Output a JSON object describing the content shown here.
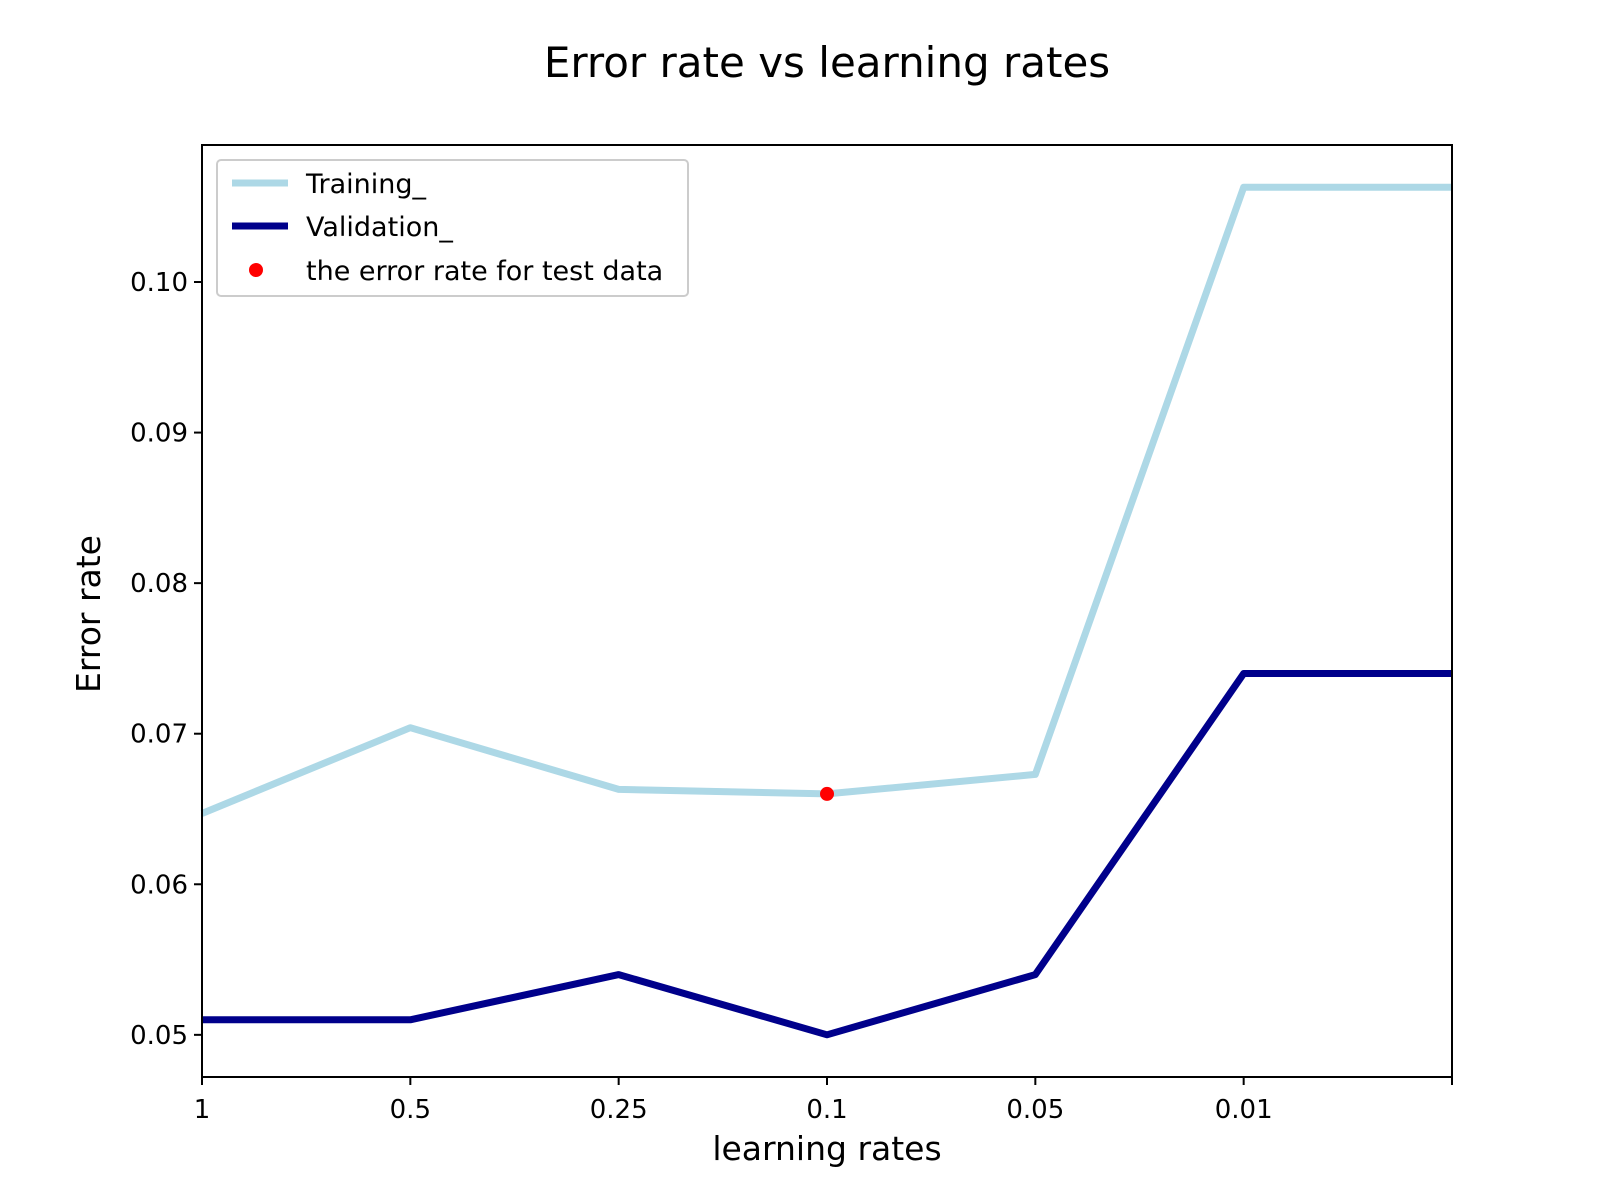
{
  "chart_data": {
    "type": "line",
    "title": "Error rate vs learning rates",
    "xlabel": "learning rates",
    "ylabel": "Error rate",
    "categories": [
      "1",
      "0.5",
      "0.25",
      "0.1",
      "0.05",
      "0.01",
      ""
    ],
    "xlim": [
      0,
      6
    ],
    "ylim": [
      0.0472,
      0.1091
    ],
    "yticks": [
      0.05,
      0.06,
      0.07,
      0.08,
      0.09,
      0.1
    ],
    "ytick_labels": [
      "0.05",
      "0.06",
      "0.07",
      "0.08",
      "0.09",
      "0.10"
    ],
    "grid": false,
    "legend_position": "upper left",
    "series": [
      {
        "name": "Training_",
        "kind": "line",
        "color": "#add8e6",
        "values": [
          0.0647,
          0.0704,
          0.0663,
          0.066,
          0.0673,
          0.1063,
          0.1063
        ]
      },
      {
        "name": "Validation_",
        "kind": "line",
        "color": "#00008b",
        "values": [
          0.051,
          0.051,
          0.054,
          0.05,
          0.054,
          0.074,
          0.074
        ]
      },
      {
        "name": "the error rate for test data",
        "kind": "scatter",
        "color": "#ff0000",
        "points": [
          {
            "x": 3,
            "y": 0.066
          }
        ]
      }
    ]
  }
}
